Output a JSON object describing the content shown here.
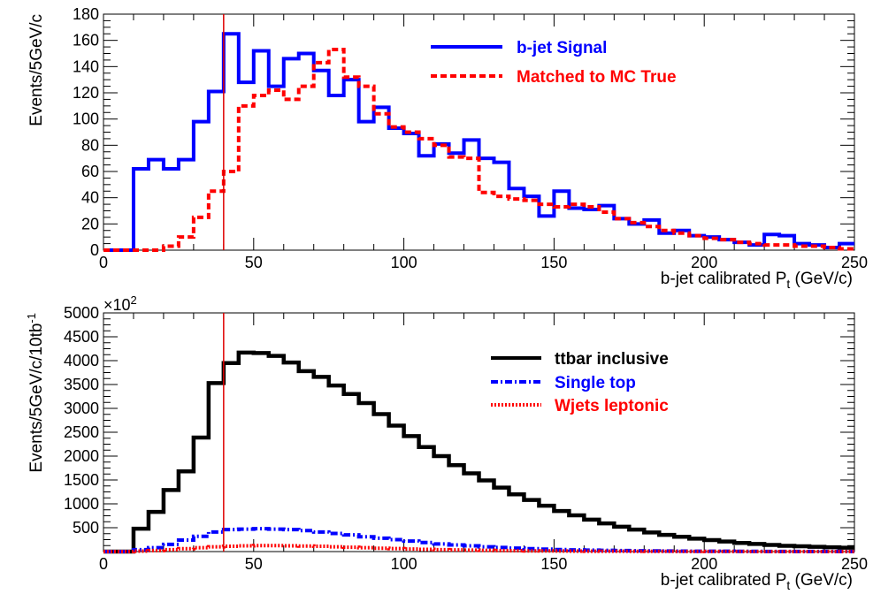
{
  "chart_data": [
    {
      "type": "histogram",
      "bin_edges_start": 0,
      "bin_width": 5,
      "xlim": [
        0,
        250
      ],
      "ylim": [
        0,
        180
      ],
      "xlabel": "b-jet calibrated P",
      "xlabel_sub": "t",
      "xlabel_unit": "(GeV/c)",
      "ylabel": "Events/5GeV/c",
      "x_ticks": [
        "0",
        "50",
        "100",
        "150",
        "200",
        "250"
      ],
      "y_ticks": [
        "0",
        "20",
        "40",
        "60",
        "80",
        "100",
        "120",
        "140",
        "160",
        "180"
      ],
      "cut_line_x": 40,
      "legend_position": "top-right",
      "series": [
        {
          "name": "b-jet    Signal",
          "color": "#0000ff",
          "style": "solid",
          "values": [
            0,
            0,
            62,
            69,
            62,
            69,
            98,
            121,
            165,
            128,
            152,
            125,
            146,
            150,
            137,
            118,
            130,
            98,
            109,
            93,
            89,
            72,
            81,
            74,
            84,
            70,
            67,
            47,
            41,
            26,
            45,
            32,
            31,
            34,
            24,
            20,
            23,
            13,
            15,
            11,
            10,
            8,
            6,
            4,
            12,
            11,
            5,
            4,
            2,
            5
          ]
        },
        {
          "name": "Matched to MC True",
          "color": "#ff0000",
          "style": "dashed",
          "values": [
            0,
            0,
            0,
            0,
            3,
            10,
            25,
            45,
            60,
            110,
            118,
            122,
            115,
            125,
            143,
            153,
            132,
            125,
            104,
            94,
            90,
            85,
            80,
            71,
            70,
            44,
            41,
            39,
            38,
            35,
            33,
            35,
            33,
            29,
            24,
            21,
            18,
            15,
            13,
            11,
            9,
            8,
            6,
            5,
            4,
            4,
            3,
            3,
            2,
            1
          ]
        }
      ]
    },
    {
      "type": "histogram",
      "bin_edges_start": 0,
      "bin_width": 5,
      "xlim": [
        0,
        250
      ],
      "ylim": [
        0,
        5000
      ],
      "xlabel": "b-jet calibrated P",
      "xlabel_sub": "t",
      "xlabel_unit": "(GeV/c)",
      "ylabel": "Events/5GeV/c/10tb",
      "ylabel_sup": "-1",
      "y_multiplier": "×10",
      "y_multiplier_exp": "2",
      "x_ticks": [
        "0",
        "50",
        "100",
        "150",
        "200",
        "250"
      ],
      "y_ticks": [
        "500",
        "1000",
        "1500",
        "2000",
        "2500",
        "3000",
        "3500",
        "4000",
        "4500",
        "5000"
      ],
      "cut_line_x": 40,
      "legend_position": "top-right",
      "series": [
        {
          "name": "ttbar inclusive",
          "color": "#000000",
          "style": "solid",
          "values": [
            0,
            0,
            480,
            830,
            1290,
            1680,
            2390,
            3530,
            3950,
            4170,
            4160,
            4100,
            3960,
            3780,
            3660,
            3480,
            3300,
            3110,
            2880,
            2640,
            2420,
            2190,
            2000,
            1810,
            1640,
            1490,
            1340,
            1200,
            1080,
            960,
            850,
            760,
            670,
            590,
            520,
            460,
            400,
            350,
            310,
            270,
            240,
            210,
            180,
            160,
            140,
            120,
            110,
            100,
            90,
            80
          ]
        },
        {
          "name": "Single top",
          "color": "#0000ff",
          "style": "dashdot",
          "values": [
            0,
            0,
            40,
            80,
            150,
            240,
            320,
            410,
            460,
            470,
            480,
            470,
            460,
            440,
            410,
            380,
            350,
            310,
            280,
            250,
            220,
            190,
            160,
            140,
            120,
            100,
            85,
            72,
            60,
            50,
            42,
            35,
            30,
            25,
            20,
            17,
            14,
            12,
            10,
            8,
            7,
            6,
            5,
            4,
            3,
            3,
            2,
            2,
            2,
            1
          ]
        },
        {
          "name": "Wjets leptonic",
          "color": "#ff0000",
          "style": "dotted",
          "values": [
            0,
            0,
            10,
            20,
            40,
            60,
            80,
            100,
            110,
            120,
            125,
            125,
            120,
            115,
            110,
            100,
            90,
            80,
            70,
            62,
            54,
            46,
            40,
            34,
            29,
            25,
            21,
            18,
            15,
            13,
            11,
            9,
            8,
            7,
            6,
            5,
            4,
            4,
            3,
            3,
            2,
            2,
            2,
            1,
            1,
            1,
            1,
            1,
            1,
            1
          ]
        }
      ]
    }
  ]
}
